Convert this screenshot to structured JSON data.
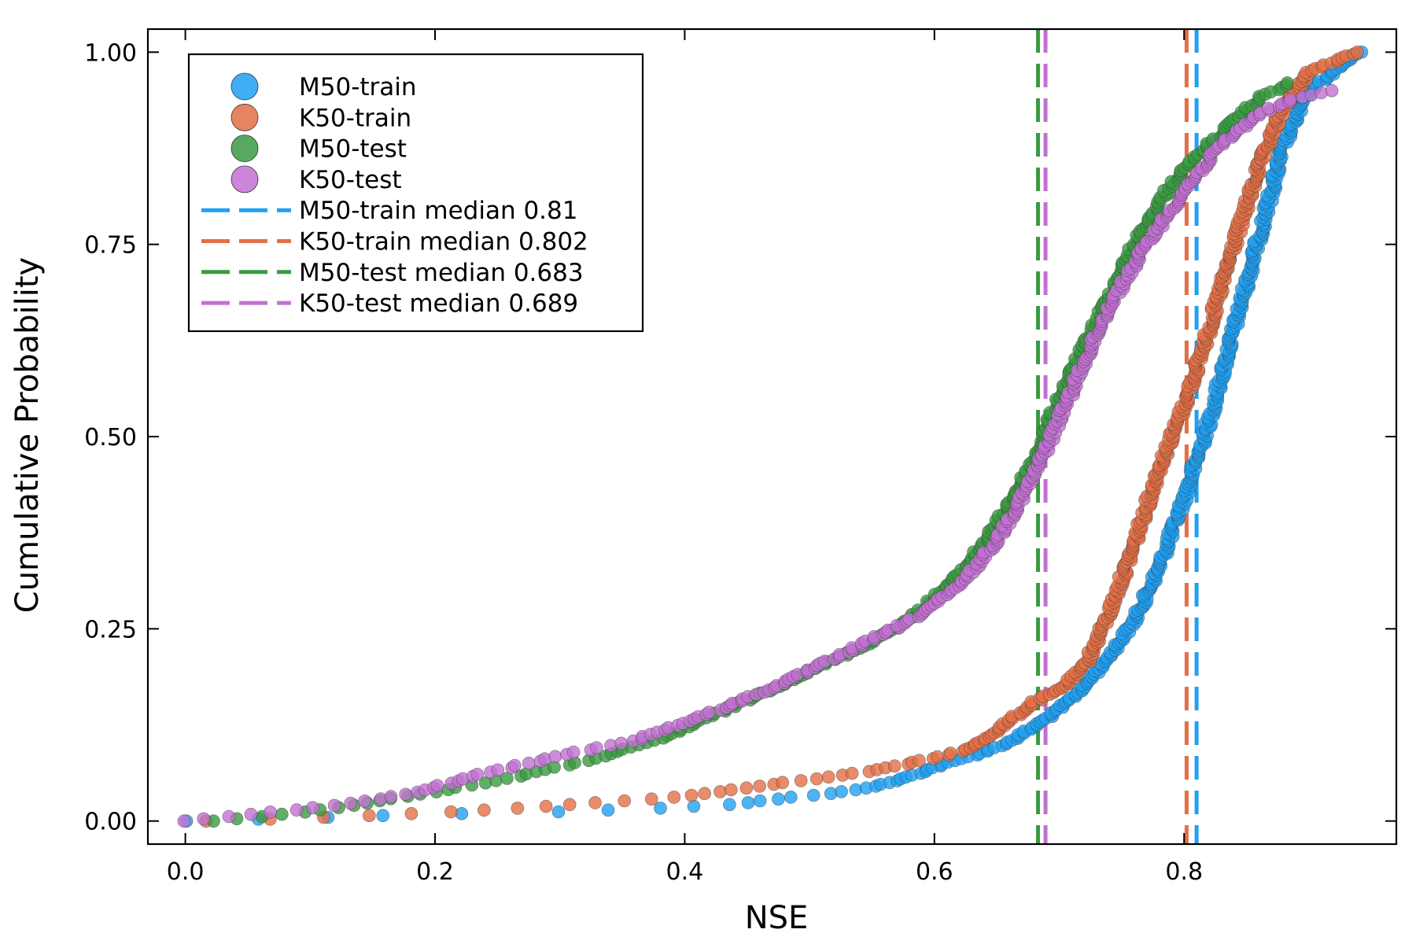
{
  "chart_data": {
    "type": "scatter",
    "xlabel": "NSE",
    "ylabel": "Cumulative Probability",
    "xlim": [
      -0.03,
      0.97
    ],
    "ylim": [
      -0.03,
      1.03
    ],
    "xticks": [
      0.0,
      0.2,
      0.4,
      0.6,
      0.8
    ],
    "xtick_labels": [
      "0.0",
      "0.2",
      "0.4",
      "0.6",
      "0.8"
    ],
    "yticks": [
      0.0,
      0.25,
      0.5,
      0.75,
      1.0
    ],
    "ytick_labels": [
      "0.00",
      "0.25",
      "0.50",
      "0.75",
      "1.00"
    ],
    "grid": false,
    "legend_position": "top-left",
    "colors": {
      "M50-train": "#1fa0f2",
      "K50-train": "#e26f46",
      "M50-test": "#3a9a41",
      "K50-test": "#c271d2"
    },
    "series": [
      {
        "name": "M50-train",
        "cdf_points": [
          [
            0.0,
            0.0
          ],
          [
            0.1,
            0.004
          ],
          [
            0.17,
            0.008
          ],
          [
            0.3,
            0.012
          ],
          [
            0.37,
            0.016
          ],
          [
            0.44,
            0.022
          ],
          [
            0.48,
            0.03
          ],
          [
            0.52,
            0.036
          ],
          [
            0.56,
            0.048
          ],
          [
            0.58,
            0.058
          ],
          [
            0.6,
            0.07
          ],
          [
            0.62,
            0.08
          ],
          [
            0.64,
            0.09
          ],
          [
            0.66,
            0.103
          ],
          [
            0.68,
            0.123
          ],
          [
            0.7,
            0.145
          ],
          [
            0.72,
            0.175
          ],
          [
            0.74,
            0.215
          ],
          [
            0.76,
            0.26
          ],
          [
            0.78,
            0.33
          ],
          [
            0.8,
            0.42
          ],
          [
            0.82,
            0.52
          ],
          [
            0.84,
            0.64
          ],
          [
            0.86,
            0.76
          ],
          [
            0.88,
            0.88
          ],
          [
            0.9,
            0.95
          ],
          [
            0.94,
            1.0
          ]
        ]
      },
      {
        "name": "K50-train",
        "cdf_points": [
          [
            0.015,
            0.0
          ],
          [
            0.1,
            0.004
          ],
          [
            0.19,
            0.01
          ],
          [
            0.26,
            0.016
          ],
          [
            0.33,
            0.024
          ],
          [
            0.4,
            0.032
          ],
          [
            0.46,
            0.046
          ],
          [
            0.52,
            0.058
          ],
          [
            0.56,
            0.068
          ],
          [
            0.6,
            0.082
          ],
          [
            0.63,
            0.095
          ],
          [
            0.66,
            0.13
          ],
          [
            0.68,
            0.155
          ],
          [
            0.7,
            0.17
          ],
          [
            0.72,
            0.2
          ],
          [
            0.74,
            0.27
          ],
          [
            0.76,
            0.36
          ],
          [
            0.78,
            0.46
          ],
          [
            0.8,
            0.54
          ],
          [
            0.82,
            0.64
          ],
          [
            0.84,
            0.75
          ],
          [
            0.86,
            0.85
          ],
          [
            0.88,
            0.93
          ],
          [
            0.9,
            0.975
          ],
          [
            0.94,
            1.0
          ]
        ]
      },
      {
        "name": "M50-test",
        "cdf_points": [
          [
            0.02,
            0.0
          ],
          [
            0.1,
            0.012
          ],
          [
            0.15,
            0.025
          ],
          [
            0.2,
            0.038
          ],
          [
            0.26,
            0.056
          ],
          [
            0.32,
            0.078
          ],
          [
            0.38,
            0.106
          ],
          [
            0.44,
            0.15
          ],
          [
            0.5,
            0.195
          ],
          [
            0.54,
            0.225
          ],
          [
            0.58,
            0.262
          ],
          [
            0.62,
            0.32
          ],
          [
            0.65,
            0.385
          ],
          [
            0.68,
            0.47
          ],
          [
            0.7,
            0.55
          ],
          [
            0.73,
            0.65
          ],
          [
            0.76,
            0.75
          ],
          [
            0.79,
            0.83
          ],
          [
            0.82,
            0.88
          ],
          [
            0.86,
            0.94
          ],
          [
            0.89,
            0.965
          ],
          [
            0.915,
            0.96
          ]
        ]
      },
      {
        "name": "K50-test",
        "cdf_points": [
          [
            0.0,
            0.0
          ],
          [
            0.06,
            0.01
          ],
          [
            0.12,
            0.02
          ],
          [
            0.18,
            0.035
          ],
          [
            0.23,
            0.058
          ],
          [
            0.3,
            0.085
          ],
          [
            0.36,
            0.105
          ],
          [
            0.42,
            0.14
          ],
          [
            0.48,
            0.18
          ],
          [
            0.53,
            0.22
          ],
          [
            0.58,
            0.26
          ],
          [
            0.62,
            0.305
          ],
          [
            0.65,
            0.365
          ],
          [
            0.68,
            0.45
          ],
          [
            0.71,
            0.56
          ],
          [
            0.74,
            0.67
          ],
          [
            0.77,
            0.75
          ],
          [
            0.8,
            0.82
          ],
          [
            0.83,
            0.88
          ],
          [
            0.86,
            0.92
          ],
          [
            0.89,
            0.94
          ],
          [
            0.92,
            0.95
          ]
        ]
      }
    ],
    "medians": [
      {
        "name": "M50-train",
        "value": 0.81
      },
      {
        "name": "K50-train",
        "value": 0.802
      },
      {
        "name": "M50-test",
        "value": 0.683
      },
      {
        "name": "K50-test",
        "value": 0.689
      }
    ],
    "legend": [
      {
        "label": "M50-train",
        "kind": "marker",
        "series": "M50-train"
      },
      {
        "label": "K50-train",
        "kind": "marker",
        "series": "K50-train"
      },
      {
        "label": "M50-test",
        "kind": "marker",
        "series": "M50-test"
      },
      {
        "label": "K50-test",
        "kind": "marker",
        "series": "K50-test"
      },
      {
        "label": "M50-train median 0.81",
        "kind": "line",
        "series": "M50-train"
      },
      {
        "label": "K50-train median 0.802",
        "kind": "line",
        "series": "K50-train"
      },
      {
        "label": "M50-test median 0.683",
        "kind": "line",
        "series": "M50-test"
      },
      {
        "label": "K50-test median 0.689",
        "kind": "line",
        "series": "K50-test"
      }
    ]
  }
}
